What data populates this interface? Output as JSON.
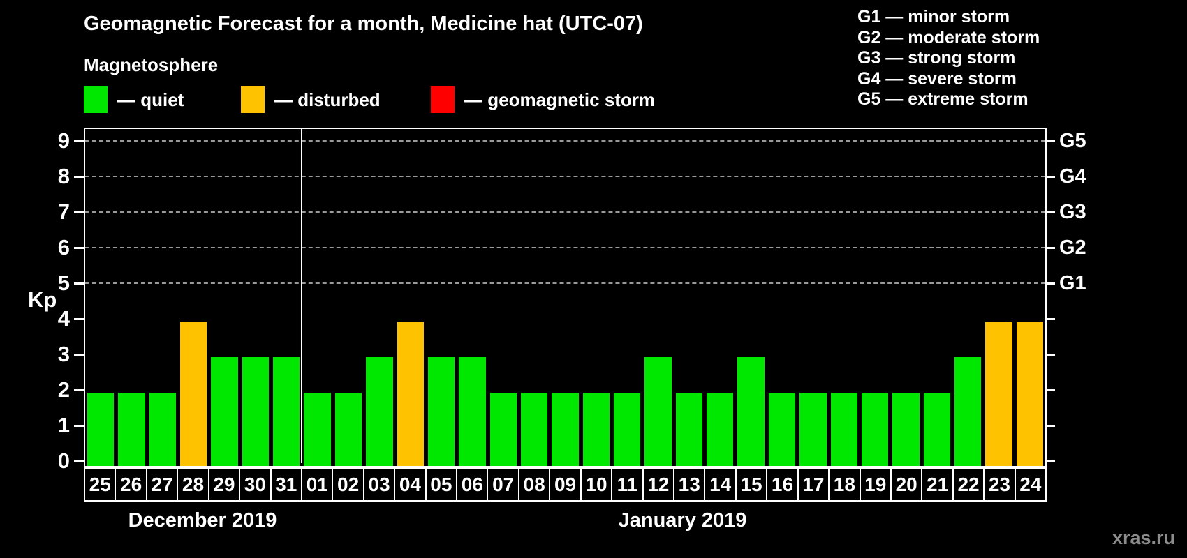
{
  "title": "Geomagnetic Forecast for a month, Medicine hat (UTC-07)",
  "subtitle": "Magnetosphere",
  "legend": {
    "items": [
      {
        "name": "quiet",
        "label": "— quiet",
        "color": "#00e800"
      },
      {
        "name": "disturbed",
        "label": "— disturbed",
        "color": "#ffc200"
      },
      {
        "name": "geomagnetic-storm",
        "label": "— geomagnetic storm",
        "color": "#ff0000"
      }
    ]
  },
  "storm_scale": [
    "G1 — minor storm",
    "G2 — moderate storm",
    "G3 — strong storm",
    "G4 — severe storm",
    "G5 — extreme storm"
  ],
  "axes": {
    "y_left_label": "Kp",
    "y_ticks": [
      0,
      1,
      2,
      3,
      4,
      5,
      6,
      7,
      8,
      9
    ],
    "y_right_labels": [
      {
        "kp": 5,
        "label": "G1"
      },
      {
        "kp": 6,
        "label": "G2"
      },
      {
        "kp": 7,
        "label": "G3"
      },
      {
        "kp": 8,
        "label": "G4"
      },
      {
        "kp": 9,
        "label": "G5"
      }
    ]
  },
  "chart_data": {
    "type": "bar",
    "ylabel": "Kp",
    "ylim": [
      0,
      9.4
    ],
    "grid": "dashed horizontal at Kp 5-9",
    "gridlines_at": [
      5,
      6,
      7,
      8,
      9
    ],
    "status_colors": {
      "quiet": "#00e800",
      "disturbed": "#ffc200",
      "storm": "#ff0000"
    },
    "groups": [
      {
        "label": "December 2019",
        "days": [
          {
            "day": "25",
            "kp": 2,
            "status": "quiet"
          },
          {
            "day": "26",
            "kp": 2,
            "status": "quiet"
          },
          {
            "day": "27",
            "kp": 2,
            "status": "quiet"
          },
          {
            "day": "28",
            "kp": 4,
            "status": "disturbed"
          },
          {
            "day": "29",
            "kp": 3,
            "status": "quiet"
          },
          {
            "day": "30",
            "kp": 3,
            "status": "quiet"
          },
          {
            "day": "31",
            "kp": 3,
            "status": "quiet"
          }
        ]
      },
      {
        "label": "January 2019",
        "days": [
          {
            "day": "01",
            "kp": 2,
            "status": "quiet"
          },
          {
            "day": "02",
            "kp": 2,
            "status": "quiet"
          },
          {
            "day": "03",
            "kp": 3,
            "status": "quiet"
          },
          {
            "day": "04",
            "kp": 4,
            "status": "disturbed"
          },
          {
            "day": "05",
            "kp": 3,
            "status": "quiet"
          },
          {
            "day": "06",
            "kp": 3,
            "status": "quiet"
          },
          {
            "day": "07",
            "kp": 2,
            "status": "quiet"
          },
          {
            "day": "08",
            "kp": 2,
            "status": "quiet"
          },
          {
            "day": "09",
            "kp": 2,
            "status": "quiet"
          },
          {
            "day": "10",
            "kp": 2,
            "status": "quiet"
          },
          {
            "day": "11",
            "kp": 2,
            "status": "quiet"
          },
          {
            "day": "12",
            "kp": 3,
            "status": "quiet"
          },
          {
            "day": "13",
            "kp": 2,
            "status": "quiet"
          },
          {
            "day": "14",
            "kp": 2,
            "status": "quiet"
          },
          {
            "day": "15",
            "kp": 3,
            "status": "quiet"
          },
          {
            "day": "16",
            "kp": 2,
            "status": "quiet"
          },
          {
            "day": "17",
            "kp": 2,
            "status": "quiet"
          },
          {
            "day": "18",
            "kp": 2,
            "status": "quiet"
          },
          {
            "day": "19",
            "kp": 2,
            "status": "quiet"
          },
          {
            "day": "20",
            "kp": 2,
            "status": "quiet"
          },
          {
            "day": "21",
            "kp": 2,
            "status": "quiet"
          },
          {
            "day": "22",
            "kp": 3,
            "status": "quiet"
          },
          {
            "day": "23",
            "kp": 4,
            "status": "disturbed"
          },
          {
            "day": "24",
            "kp": 4,
            "status": "disturbed"
          }
        ]
      }
    ]
  },
  "watermark": "xras.ru"
}
